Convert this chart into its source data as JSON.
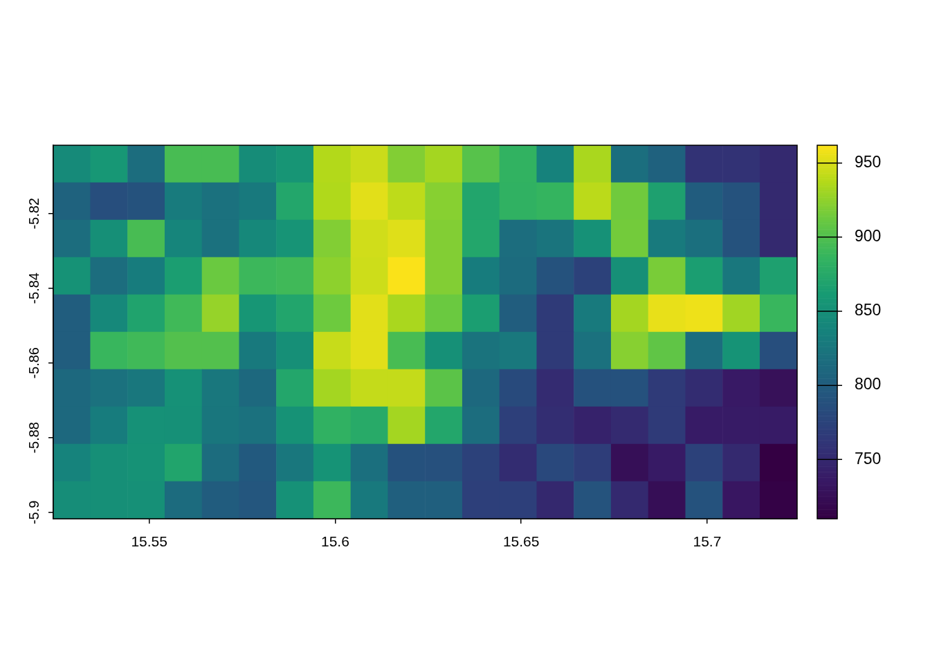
{
  "chart_data": {
    "type": "heatmap",
    "x": [
      15.5292,
      15.5392,
      15.5492,
      15.5592,
      15.5692,
      15.5792,
      15.5892,
      15.5992,
      15.6092,
      15.6192,
      15.6292,
      15.6392,
      15.6492,
      15.6592,
      15.6692,
      15.6792,
      15.6892,
      15.6992,
      15.7092,
      15.7192
    ],
    "y": [
      -5.8067,
      -5.8167,
      -5.8267,
      -5.8367,
      -5.8467,
      -5.8567,
      -5.8667,
      -5.8767,
      -5.8867,
      -5.8967
    ],
    "cells": [
      [
        845,
        858,
        816,
        896,
        896,
        847,
        856,
        937,
        945,
        920,
        932,
        903,
        884,
        836,
        934,
        817,
        805,
        758,
        758,
        750
      ],
      [
        806,
        786,
        790,
        830,
        820,
        828,
        872,
        936,
        953,
        941,
        922,
        871,
        883,
        886,
        940,
        914,
        867,
        800,
        790,
        750
      ],
      [
        816,
        850,
        896,
        840,
        820,
        843,
        855,
        920,
        947,
        952,
        920,
        872,
        816,
        823,
        852,
        915,
        829,
        818,
        790,
        750
      ],
      [
        853,
        816,
        831,
        865,
        912,
        890,
        892,
        924,
        946,
        961,
        920,
        831,
        814,
        790,
        773,
        850,
        917,
        865,
        826,
        867
      ],
      [
        801,
        843,
        869,
        892,
        927,
        857,
        871,
        913,
        953,
        934,
        912,
        865,
        801,
        766,
        829,
        932,
        955,
        957,
        931,
        888
      ],
      [
        801,
        888,
        892,
        901,
        901,
        828,
        850,
        944,
        953,
        896,
        851,
        822,
        827,
        766,
        820,
        922,
        907,
        816,
        854,
        786
      ],
      [
        812,
        820,
        826,
        852,
        826,
        812,
        872,
        932,
        943,
        943,
        905,
        812,
        782,
        752,
        789,
        789,
        766,
        753,
        736,
        727
      ],
      [
        812,
        831,
        852,
        851,
        825,
        820,
        853,
        883,
        876,
        932,
        872,
        816,
        771,
        754,
        744,
        751,
        766,
        738,
        738,
        738
      ],
      [
        837,
        850,
        853,
        870,
        815,
        797,
        826,
        854,
        818,
        789,
        788,
        773,
        753,
        780,
        769,
        725,
        737,
        773,
        750,
        710
      ],
      [
        848,
        850,
        851,
        814,
        800,
        794,
        852,
        890,
        828,
        803,
        803,
        771,
        771,
        749,
        791,
        750,
        724,
        790,
        733,
        712
      ]
    ],
    "xlim": [
      15.5242,
      15.7242
    ],
    "xticks": [
      15.55,
      15.6,
      15.65,
      15.7
    ],
    "ylim": [
      -5.9017,
      -5.8017
    ],
    "yticks": [
      -5.82,
      -5.84,
      -5.86,
      -5.88,
      -5.9
    ],
    "clim": [
      710,
      962
    ],
    "cticks": [
      750,
      800,
      850,
      900,
      950
    ]
  }
}
